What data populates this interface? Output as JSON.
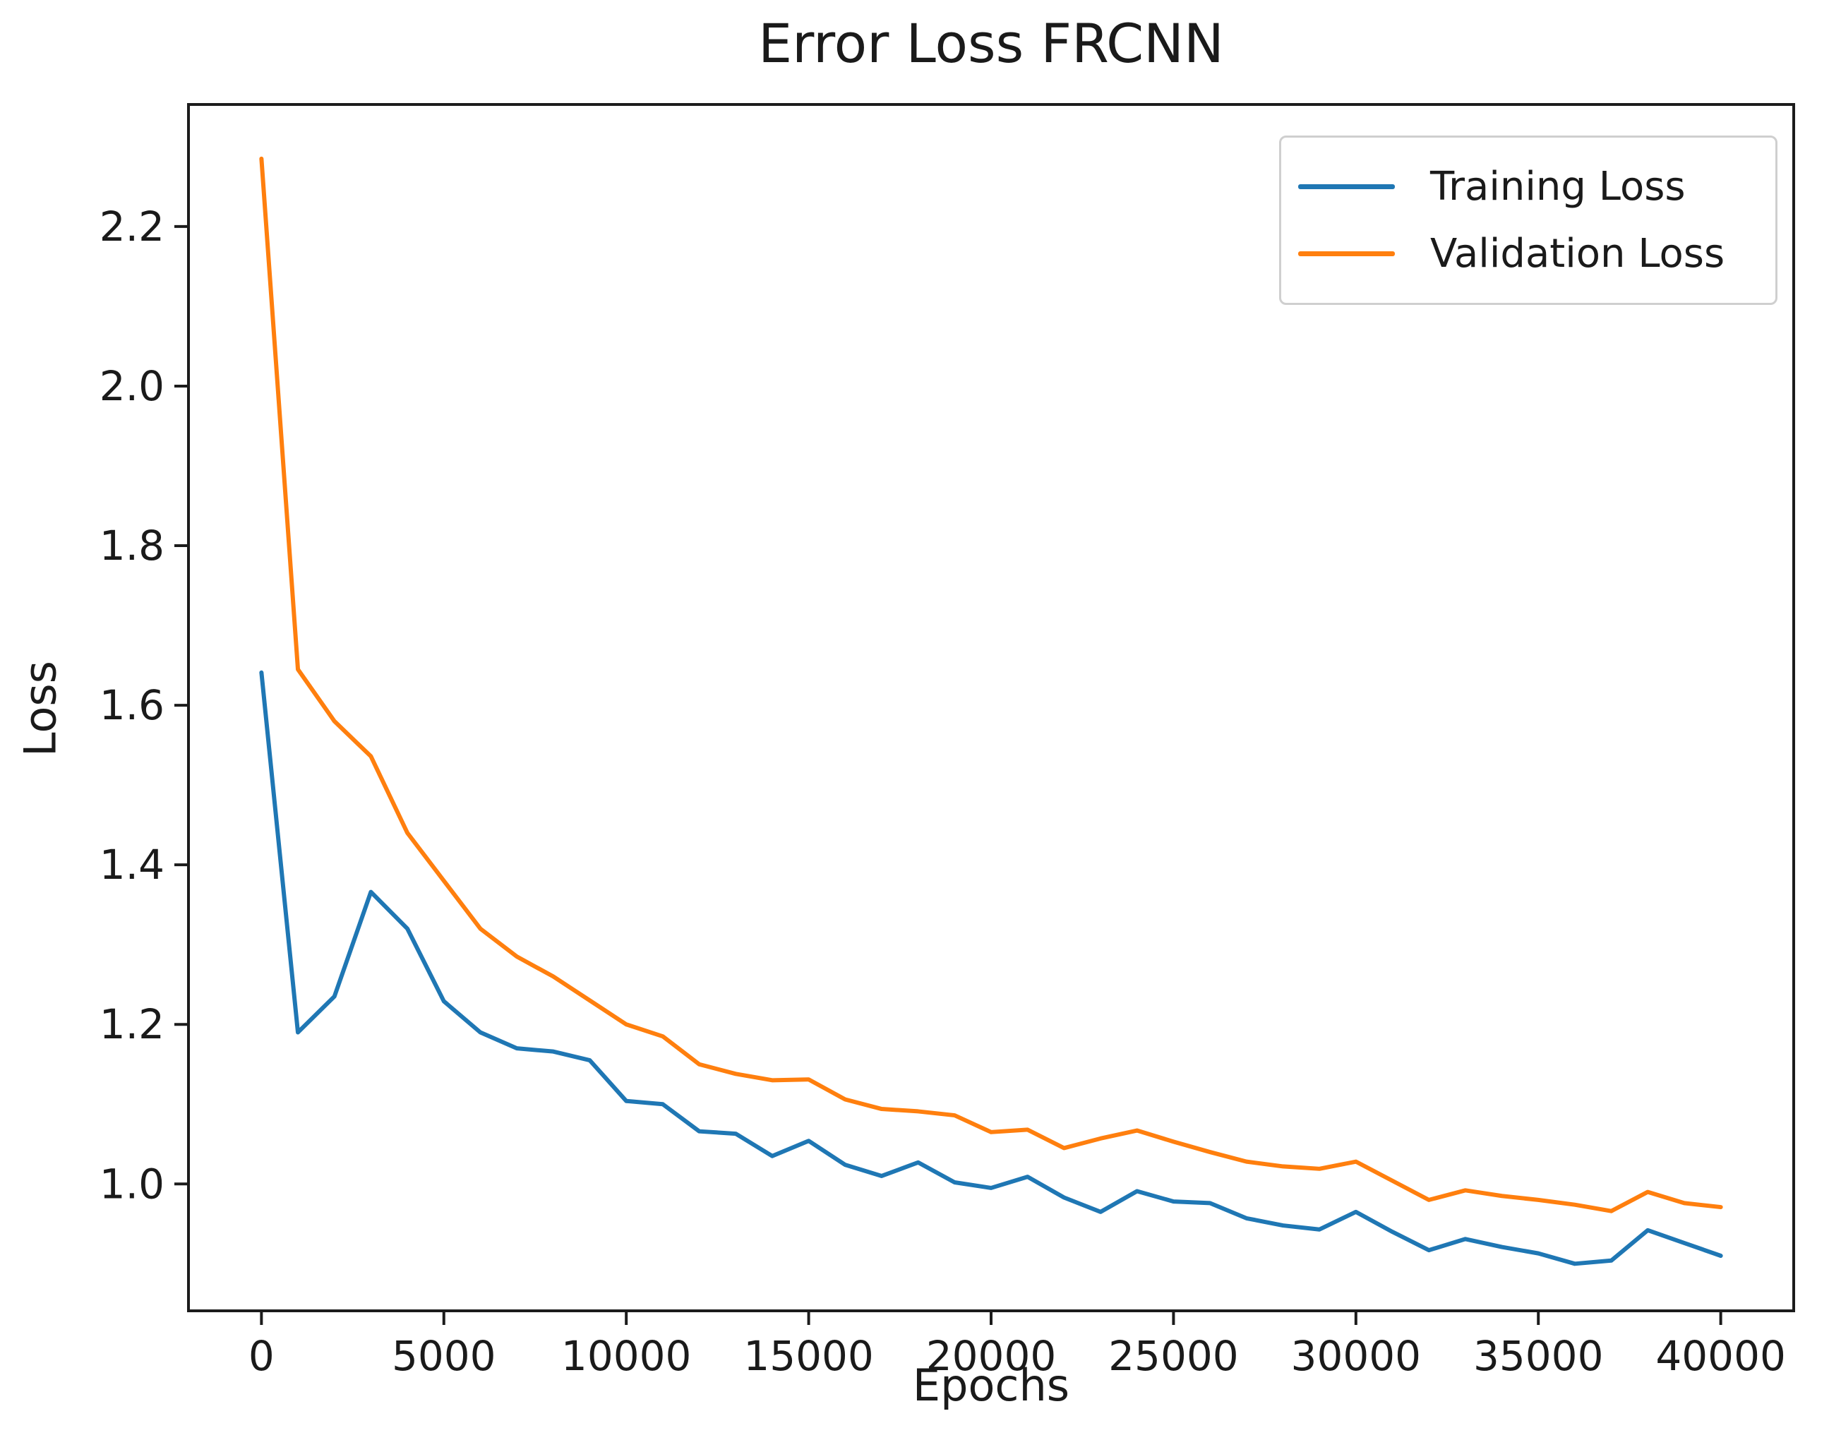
{
  "figure": {
    "background": "#ffffff",
    "colors": {
      "spine": "#1c1c1c",
      "tick": "#1c1c1c",
      "text": "#1a1a1a",
      "legend_border": "#cfcfcf"
    }
  },
  "chart_data": {
    "type": "line",
    "title": "Error Loss FRCNN",
    "xlabel": "Epochs",
    "ylabel": "Loss",
    "grid": false,
    "legend_position": "upper right",
    "xlim": [
      -2000,
      42000
    ],
    "ylim": [
      0.841,
      2.353
    ],
    "x_ticks": [
      0,
      5000,
      10000,
      15000,
      20000,
      25000,
      30000,
      35000,
      40000
    ],
    "y_ticks": [
      1.0,
      1.2,
      1.4,
      1.6,
      1.8,
      2.0,
      2.2
    ],
    "x": [
      0,
      1000,
      2000,
      3000,
      4000,
      5000,
      6000,
      7000,
      8000,
      9000,
      10000,
      11000,
      12000,
      13000,
      14000,
      15000,
      16000,
      17000,
      18000,
      19000,
      20000,
      21000,
      22000,
      23000,
      24000,
      25000,
      26000,
      27000,
      28000,
      29000,
      30000,
      31000,
      32000,
      33000,
      34000,
      35000,
      36000,
      37000,
      38000,
      39000,
      40000
    ],
    "series": [
      {
        "name": "Training Loss",
        "color": "#1f77b4",
        "values": [
          1.641,
          1.19,
          1.235,
          1.366,
          1.32,
          1.229,
          1.19,
          1.17,
          1.166,
          1.155,
          1.104,
          1.1,
          1.066,
          1.063,
          1.035,
          1.054,
          1.024,
          1.01,
          1.027,
          1.002,
          0.995,
          1.009,
          0.983,
          0.965,
          0.991,
          0.978,
          0.976,
          0.957,
          0.948,
          0.943,
          0.965,
          0.94,
          0.917,
          0.931,
          0.921,
          0.913,
          0.9,
          0.904,
          0.942,
          0.926,
          0.91
        ]
      },
      {
        "name": "Validation Loss",
        "color": "#ff7f0e",
        "values": [
          2.285,
          1.645,
          1.58,
          1.536,
          1.44,
          1.38,
          1.32,
          1.285,
          1.26,
          1.23,
          1.2,
          1.185,
          1.15,
          1.138,
          1.13,
          1.131,
          1.106,
          1.094,
          1.091,
          1.086,
          1.065,
          1.068,
          1.045,
          1.057,
          1.067,
          1.053,
          1.04,
          1.028,
          1.022,
          1.019,
          1.028,
          1.004,
          0.98,
          0.992,
          0.985,
          0.98,
          0.974,
          0.966,
          0.99,
          0.976,
          0.971
        ]
      }
    ]
  }
}
